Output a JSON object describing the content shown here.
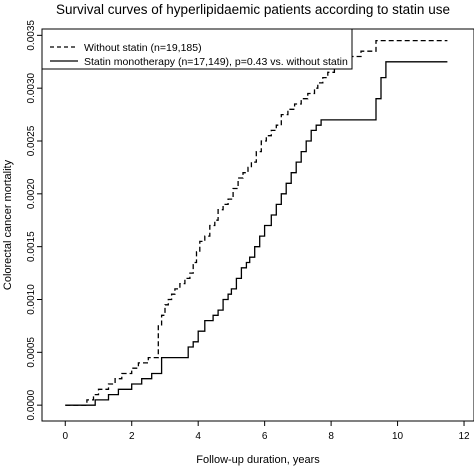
{
  "chart_data": {
    "type": "line",
    "title": "Survival curves of hyperlipidaemic patients according to statin use",
    "xlabel": "Follow-up duration, years",
    "ylabel": "Colorectal cancer mortality",
    "xlim": [
      -0.7,
      12.3
    ],
    "ylim": [
      -0.00015,
      0.00356
    ],
    "x_ticks": [
      0,
      2,
      4,
      6,
      8,
      10,
      12
    ],
    "x_tick_labels": [
      "0",
      "2",
      "4",
      "6",
      "8",
      "10",
      "12"
    ],
    "y_ticks": [
      0.0,
      0.0005,
      0.001,
      0.0015,
      0.002,
      0.0025,
      0.003,
      0.0035
    ],
    "y_tick_labels": [
      "0.0000",
      "0.0005",
      "0.0010",
      "0.0015",
      "0.0020",
      "0.0025",
      "0.0030",
      "0.0035"
    ],
    "grid": false,
    "legend_position": "top-left",
    "series": [
      {
        "name": "Without statin (n=19,185)",
        "style": "dashed",
        "color": "#000000",
        "x": [
          0,
          0.65,
          0.85,
          1.0,
          1.3,
          1.5,
          1.7,
          2.0,
          2.2,
          2.5,
          2.8,
          2.9,
          3.0,
          3.1,
          3.2,
          3.3,
          3.45,
          3.6,
          3.75,
          3.85,
          3.95,
          4.05,
          4.2,
          4.35,
          4.5,
          4.6,
          4.75,
          4.9,
          5.05,
          5.2,
          5.35,
          5.5,
          5.6,
          5.75,
          5.9,
          6.05,
          6.2,
          6.35,
          6.5,
          6.7,
          6.9,
          7.1,
          7.3,
          7.5,
          7.6,
          7.75,
          7.9,
          8.1,
          8.5,
          8.9,
          9.35,
          11.5
        ],
        "y": [
          0,
          5e-05,
          0.0001,
          0.00015,
          0.0002,
          0.00025,
          0.0003,
          0.00035,
          0.0004,
          0.00045,
          0.00075,
          0.00085,
          0.00095,
          0.001,
          0.00105,
          0.0011,
          0.00115,
          0.0012,
          0.00125,
          0.00135,
          0.00145,
          0.00155,
          0.0016,
          0.0017,
          0.00175,
          0.00185,
          0.0019,
          0.00195,
          0.00205,
          0.00215,
          0.0022,
          0.00225,
          0.0023,
          0.0024,
          0.0025,
          0.00255,
          0.0026,
          0.00265,
          0.00275,
          0.0028,
          0.00285,
          0.0029,
          0.00295,
          0.003,
          0.00305,
          0.0031,
          0.00315,
          0.0032,
          0.0033,
          0.00335,
          0.00345,
          0.00345
        ]
      },
      {
        "name": "Statin monotherapy (n=17,149), p=0.43 vs. without statin",
        "style": "solid",
        "color": "#000000",
        "x": [
          0,
          0.9,
          1.3,
          1.6,
          2.0,
          2.3,
          2.6,
          2.9,
          3.7,
          3.85,
          4.0,
          4.2,
          4.45,
          4.6,
          4.75,
          4.9,
          5.0,
          5.15,
          5.3,
          5.45,
          5.55,
          5.7,
          5.85,
          6.0,
          6.2,
          6.35,
          6.5,
          6.65,
          6.8,
          6.95,
          7.1,
          7.25,
          7.4,
          7.55,
          7.7,
          7.85,
          8.0,
          8.3,
          8.7,
          9.35,
          9.5,
          9.65,
          11.5
        ],
        "y": [
          0,
          5e-05,
          0.0001,
          0.00015,
          0.0002,
          0.00025,
          0.0003,
          0.00045,
          0.00055,
          0.0006,
          0.0007,
          0.0008,
          0.00085,
          0.0009,
          0.001,
          0.00105,
          0.0011,
          0.0012,
          0.0013,
          0.00135,
          0.0014,
          0.0015,
          0.0016,
          0.0017,
          0.0018,
          0.0019,
          0.002,
          0.0021,
          0.0022,
          0.0023,
          0.0024,
          0.0025,
          0.0026,
          0.00265,
          0.0027,
          0.0027,
          0.0027,
          0.0027,
          0.0027,
          0.0029,
          0.0031,
          0.00325,
          0.00325
        ]
      }
    ]
  }
}
